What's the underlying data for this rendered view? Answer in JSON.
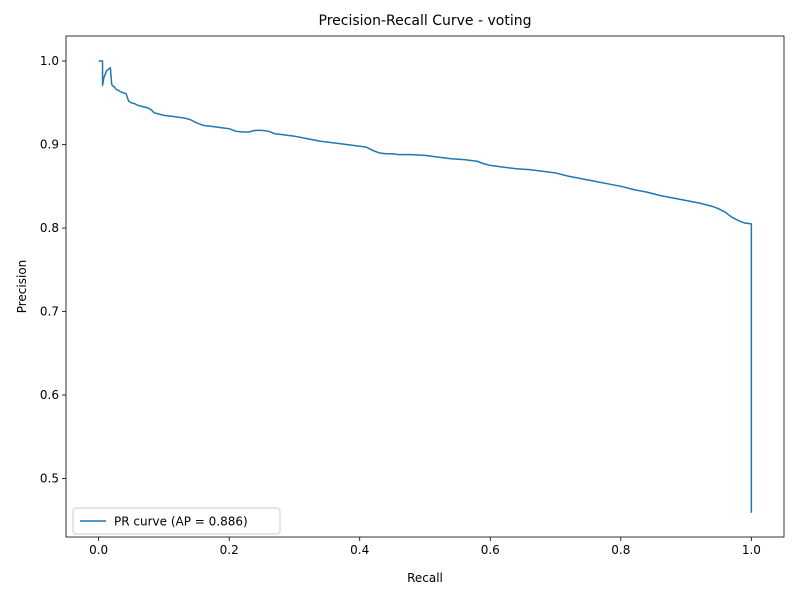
{
  "chart_data": {
    "type": "line",
    "title": "Precision-Recall Curve - voting",
    "xlabel": "Recall",
    "ylabel": "Precision",
    "xlim": [
      -0.05,
      1.05
    ],
    "ylim": [
      0.43,
      1.03
    ],
    "xticks": [
      0.0,
      0.2,
      0.4,
      0.6,
      0.8,
      1.0
    ],
    "xtick_labels": [
      "0.0",
      "0.2",
      "0.4",
      "0.6",
      "0.8",
      "1.0"
    ],
    "yticks": [
      0.5,
      0.6,
      0.7,
      0.8,
      0.9,
      1.0
    ],
    "ytick_labels": [
      "0.5",
      "0.6",
      "0.7",
      "0.8",
      "0.9",
      "1.0"
    ],
    "grid": false,
    "legend_position": "lower-left",
    "series": [
      {
        "name": "PR curve (AP = 0.886)",
        "color": "#1f77b4",
        "x": [
          0.0,
          0.006,
          0.006,
          0.008,
          0.012,
          0.018,
          0.02,
          0.022,
          0.024,
          0.027,
          0.03,
          0.034,
          0.038,
          0.042,
          0.046,
          0.05,
          0.055,
          0.06,
          0.065,
          0.07,
          0.075,
          0.08,
          0.085,
          0.09,
          0.095,
          0.1,
          0.11,
          0.12,
          0.13,
          0.14,
          0.15,
          0.16,
          0.17,
          0.18,
          0.19,
          0.2,
          0.21,
          0.22,
          0.23,
          0.24,
          0.25,
          0.26,
          0.27,
          0.28,
          0.29,
          0.3,
          0.32,
          0.34,
          0.36,
          0.38,
          0.4,
          0.41,
          0.42,
          0.43,
          0.44,
          0.45,
          0.46,
          0.48,
          0.5,
          0.52,
          0.54,
          0.56,
          0.58,
          0.59,
          0.6,
          0.62,
          0.64,
          0.66,
          0.68,
          0.7,
          0.72,
          0.74,
          0.76,
          0.78,
          0.8,
          0.82,
          0.84,
          0.86,
          0.88,
          0.9,
          0.92,
          0.94,
          0.95,
          0.96,
          0.97,
          0.98,
          0.99,
          1.0,
          1.0
        ],
        "y": [
          1.0,
          1.0,
          0.971,
          0.98,
          0.988,
          0.992,
          0.972,
          0.97,
          0.969,
          0.966,
          0.965,
          0.963,
          0.962,
          0.961,
          0.952,
          0.95,
          0.949,
          0.947,
          0.946,
          0.945,
          0.944,
          0.942,
          0.938,
          0.937,
          0.936,
          0.935,
          0.934,
          0.933,
          0.932,
          0.93,
          0.926,
          0.923,
          0.922,
          0.921,
          0.92,
          0.919,
          0.916,
          0.915,
          0.915,
          0.917,
          0.917,
          0.916,
          0.913,
          0.912,
          0.911,
          0.91,
          0.907,
          0.904,
          0.902,
          0.9,
          0.898,
          0.897,
          0.893,
          0.89,
          0.889,
          0.889,
          0.888,
          0.888,
          0.887,
          0.885,
          0.883,
          0.882,
          0.88,
          0.877,
          0.875,
          0.873,
          0.871,
          0.87,
          0.868,
          0.866,
          0.862,
          0.859,
          0.856,
          0.853,
          0.85,
          0.846,
          0.843,
          0.839,
          0.836,
          0.833,
          0.83,
          0.826,
          0.823,
          0.819,
          0.813,
          0.809,
          0.806,
          0.805,
          0.459
        ]
      }
    ]
  }
}
